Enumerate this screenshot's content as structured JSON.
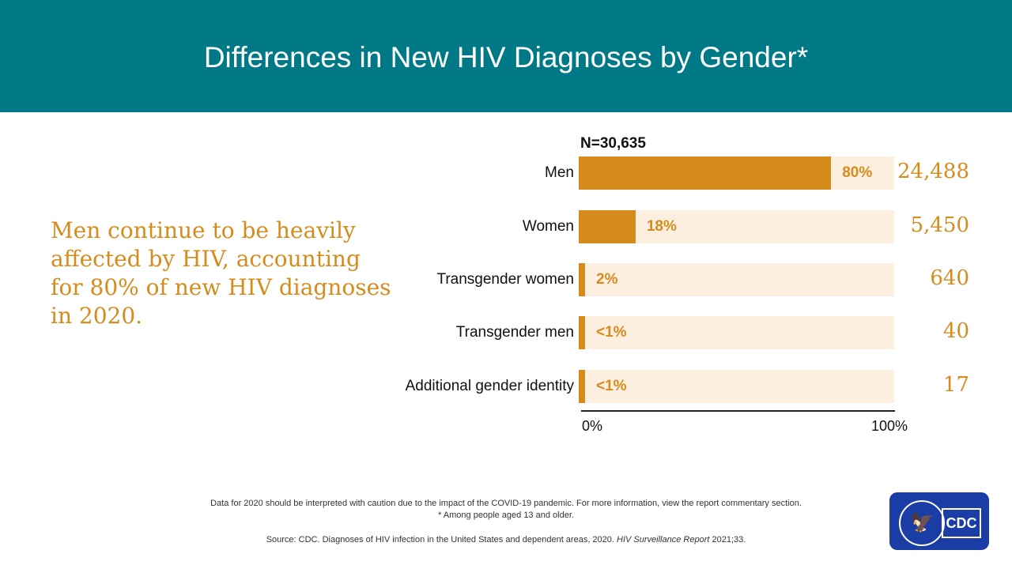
{
  "header": {
    "title": "Differences in New HIV Diagnoses by Gender*"
  },
  "callout": "Men continue to be heavily affected by HIV, accounting for 80% of new HIV diagnoses in 2020.",
  "chart_data": {
    "type": "bar",
    "orientation": "horizontal",
    "total_label": "N=30,635",
    "categories": [
      "Men",
      "Women",
      "Transgender women",
      "Transgender men",
      "Additional gender identity"
    ],
    "values": [
      80,
      18,
      2,
      0.5,
      0.5
    ],
    "value_labels": [
      "80%",
      "18%",
      "2%",
      "<1%",
      "<1%"
    ],
    "counts": [
      "24,488",
      "5,450",
      "640",
      "40",
      "17"
    ],
    "xlim": [
      0,
      100
    ],
    "tick_labels": [
      "0%",
      "100%"
    ],
    "colors": {
      "fill": "#d58c1d",
      "track": "#fcefdf"
    }
  },
  "footer": {
    "note": "Data for 2020 should be interpreted with caution due to the impact of the COVID-19 pandemic. For more information, view the report commentary section.",
    "asterisk": "* Among people aged 13 and older.",
    "source": "Source: CDC. Diagnoses of HIV infection in the United States and dependent areas, 2020.",
    "source_italic": "HIV Surveillance Report",
    "source_end": "2021;33."
  },
  "logo": {
    "text": "CDC"
  }
}
